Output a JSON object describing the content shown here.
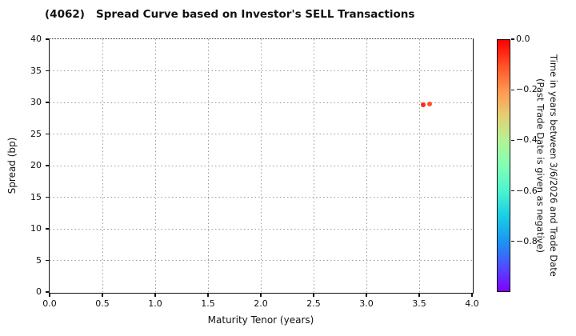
{
  "chart_data": {
    "type": "scatter",
    "title": "(4062)   Spread Curve based on Investor's SELL Transactions",
    "xlabel": "Maturity Tenor (years)",
    "ylabel": "Spread (bp)",
    "xlim": [
      0.0,
      4.0
    ],
    "ylim": [
      0,
      40
    ],
    "grid": true,
    "grid_style": "dotted",
    "x_ticks": {
      "values": [
        0.0,
        0.5,
        1.0,
        1.5,
        2.0,
        2.5,
        3.0,
        3.5,
        4.0
      ],
      "labels": [
        "0.0",
        "0.5",
        "1.0",
        "1.5",
        "2.0",
        "2.5",
        "3.0",
        "3.5",
        "4.0"
      ]
    },
    "y_ticks": {
      "values": [
        0,
        5,
        10,
        15,
        20,
        25,
        30,
        35,
        40
      ],
      "labels": [
        "0",
        "5",
        "10",
        "15",
        "20",
        "25",
        "30",
        "35",
        "40"
      ]
    },
    "points": [
      {
        "x": 3.54,
        "y": 29.6,
        "time_value": -0.05,
        "color": "#fb2c15"
      },
      {
        "x": 3.6,
        "y": 29.8,
        "time_value": -0.1,
        "color": "#ff4f28"
      }
    ],
    "colorbar": {
      "colormap": "rainbow",
      "range": [
        0.0,
        -1.0
      ],
      "label_line1": "Time in years between 3/6/2026 and Trade Date",
      "label_line2": "(Past Trade Date is given as negative)",
      "ticks": {
        "values": [
          0.0,
          -0.2,
          -0.4,
          -0.6,
          -0.8
        ],
        "labels": [
          "0.0",
          "−0.2",
          "−0.4",
          "−0.6",
          "−0.8"
        ]
      },
      "gradient_top_to_bottom": [
        "#ff0000",
        "#ff4f28",
        "#ff964f",
        "#e6ce74",
        "#b3f396",
        "#80ffb5",
        "#4df3ce",
        "#1acee3",
        "#1a96f2",
        "#4d4ffc",
        "#8000ff"
      ]
    }
  },
  "colors": {
    "background": "#ffffff",
    "spine": "#111111",
    "grid": "#9b9b9b",
    "text": "#111111"
  }
}
